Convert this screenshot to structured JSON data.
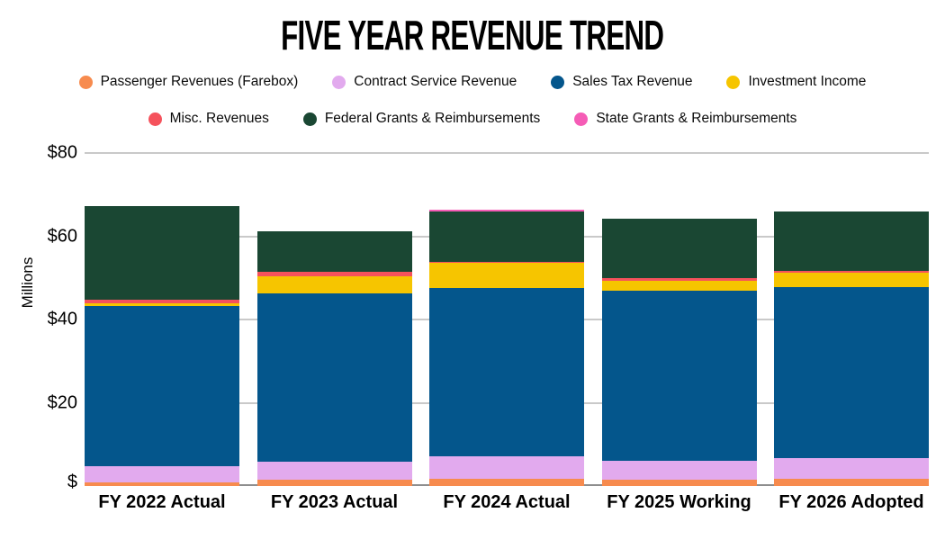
{
  "title": "FIVE YEAR REVENUE TREND",
  "chart_data": {
    "type": "bar",
    "stacked": true,
    "title": "FIVE YEAR REVENUE TREND",
    "ylabel": "Millions",
    "ylim": [
      0,
      80
    ],
    "yticks": [
      {
        "value": 0,
        "label": "$"
      },
      {
        "value": 20,
        "label": "$20"
      },
      {
        "value": 40,
        "label": "$40"
      },
      {
        "value": 60,
        "label": "$60"
      },
      {
        "value": 80,
        "label": "$80"
      }
    ],
    "grid": true,
    "legend_position": "top",
    "categories": [
      "FY 2022 Actual",
      "FY 2023 Actual",
      "FY 2024 Actual",
      "FY 2025 Working",
      "FY 2026 Adopted"
    ],
    "series": [
      {
        "name": "Passenger Revenues (Farebox)",
        "color": "#F78B4E",
        "values": [
          0.9,
          1.5,
          1.7,
          1.5,
          1.7
        ]
      },
      {
        "name": "Contract Service Revenue",
        "color": "#E2AAEE",
        "values": [
          3.9,
          4.3,
          5.4,
          4.5,
          5.0
        ]
      },
      {
        "name": "Sales Tax Revenue",
        "color": "#04568C",
        "values": [
          38.5,
          40.4,
          40.4,
          40.9,
          41.1
        ]
      },
      {
        "name": "Investment Income",
        "color": "#F6C500",
        "values": [
          0.6,
          4.1,
          6.1,
          2.4,
          3.5
        ]
      },
      {
        "name": "Misc. Revenues",
        "color": "#F5525C",
        "values": [
          0.9,
          1.1,
          0.2,
          0.6,
          0.4
        ]
      },
      {
        "name": "Federal Grants & Reimbursements",
        "color": "#1A4733",
        "values": [
          22.5,
          9.7,
          12.1,
          14.3,
          14.3
        ]
      },
      {
        "name": "State Grants & Reimbursements",
        "color": "#F55CB6",
        "values": [
          0,
          0,
          0.4,
          0,
          0
        ]
      }
    ]
  },
  "legend": {
    "rows": [
      [
        0,
        1,
        2,
        3
      ],
      [
        4,
        5,
        6
      ]
    ]
  },
  "colors": {
    "gridline": "#C9C9C9",
    "axis_line": "#8E8E8E",
    "background": "#FFFFFF",
    "text": "#000000"
  }
}
